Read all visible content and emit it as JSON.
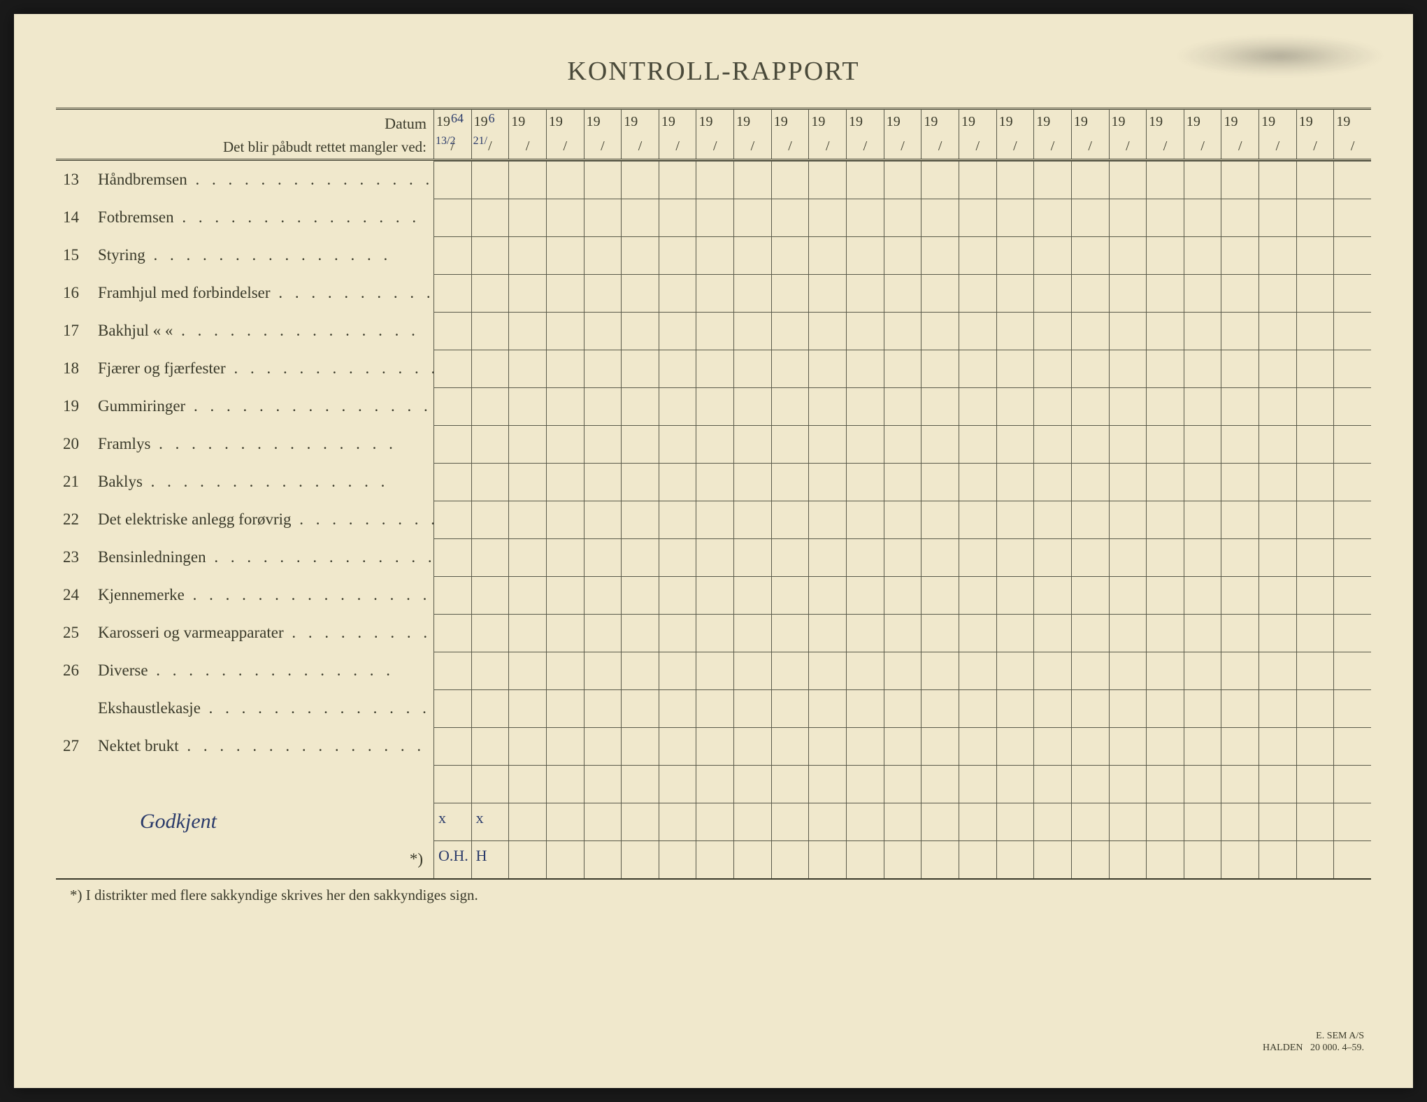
{
  "title": "KONTROLL-RAPPORT",
  "header": {
    "datum_label": "Datum",
    "mangler_label": "Det blir påbudt rettet mangler ved:",
    "year_prefix": "19",
    "handwritten_years": [
      "64",
      "6"
    ],
    "handwritten_dates": [
      "13/2",
      "21/"
    ]
  },
  "num_columns": 25,
  "items": [
    {
      "num": "13",
      "text": "Håndbremsen"
    },
    {
      "num": "14",
      "text": "Fotbremsen"
    },
    {
      "num": "15",
      "text": "Styring"
    },
    {
      "num": "16",
      "text": "Framhjul med forbindelser"
    },
    {
      "num": "17",
      "text": "Bakhjul      «            «"
    },
    {
      "num": "18",
      "text": "Fjærer og fjærfester"
    },
    {
      "num": "19",
      "text": "Gummiringer"
    },
    {
      "num": "20",
      "text": "Framlys"
    },
    {
      "num": "21",
      "text": "Baklys"
    },
    {
      "num": "22",
      "text": "Det elektriske anlegg forøvrig"
    },
    {
      "num": "23",
      "text": "Bensinledningen"
    },
    {
      "num": "24",
      "text": "Kjennemerke"
    },
    {
      "num": "25",
      "text": "Karosseri og varmeapparater"
    },
    {
      "num": "26",
      "text": "Diverse"
    },
    {
      "num": "",
      "text": "Ekshaustlekasje"
    },
    {
      "num": "27",
      "text": "Nektet brukt"
    }
  ],
  "signature_text": "Godkjent",
  "asterisk_label": "*)",
  "cell_marks": {
    "signature_0": "x",
    "signature_1": "x",
    "asterisk_0": "O.H.",
    "asterisk_1": "H"
  },
  "footnote": "*) I distrikter med flere sakkyndige skrives her den sakkyndiges sign.",
  "printer": {
    "line1": "E. SEM A/S",
    "line2": "HALDEN",
    "line3": "20 000.   4–59."
  },
  "colors": {
    "paper": "#f0e8cc",
    "ink": "#3a3a2a",
    "handwriting": "#2a3a6a",
    "grid": "#5a5a4a"
  }
}
